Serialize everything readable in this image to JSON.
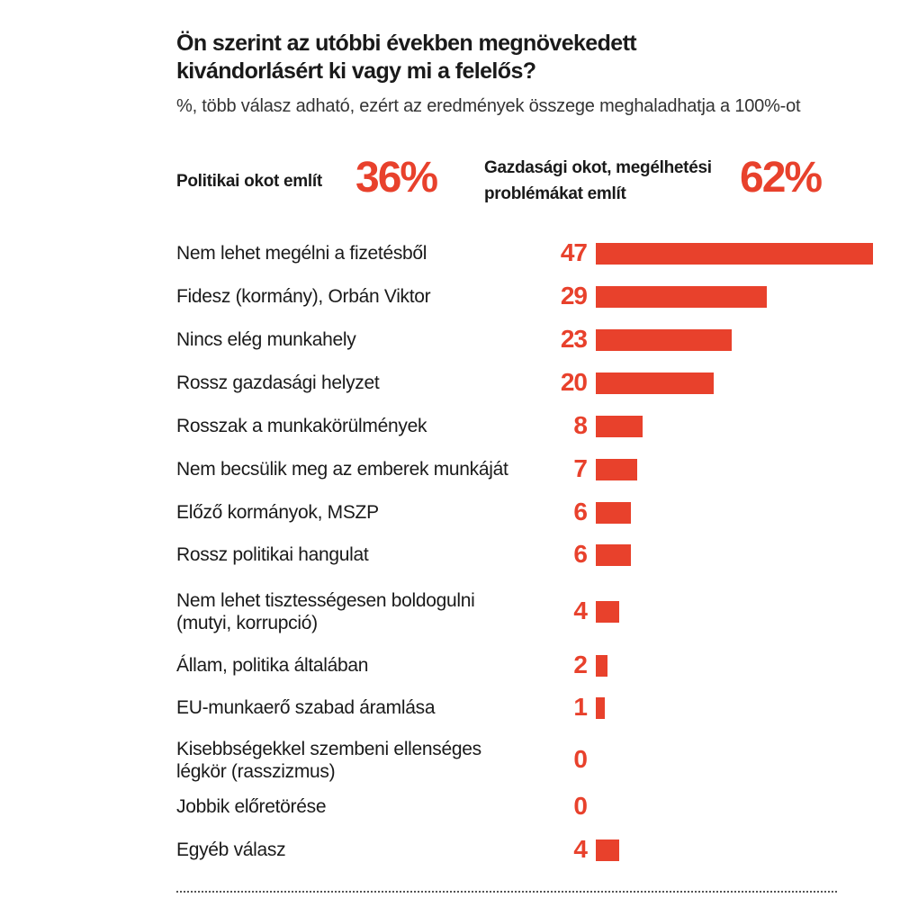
{
  "title": "Ön szerint az utóbbi években megnövekedett kivándorlásért ki vagy mi a felelős?",
  "subtitle": "%, több válasz adható, ezért az eredmények összege meghaladhatja a 100%-ot",
  "stats": [
    {
      "label": "Politikai okot említ",
      "value": "36%"
    },
    {
      "label": "Gazdasági okot, megélhetési problémákat említ",
      "value": "62%"
    }
  ],
  "colors": {
    "accent": "#e8412c",
    "text": "#1a1a1a"
  },
  "chart_data": {
    "type": "bar",
    "orientation": "horizontal",
    "categories": [
      "Nem lehet megélni a fizetésből",
      "Fidesz (kormány), Orbán Viktor",
      "Nincs elég munkahely",
      "Rossz gazdasági helyzet",
      "Rosszak a munkakörülmények",
      "Nem becsülik meg az emberek munkáját",
      "Előző kormányok, MSZP",
      "Rossz politikai hangulat",
      "Nem lehet tisztességesen boldogulni (mutyi, korrupció)",
      "Állam, politika általában",
      "EU-munkaerő szabad áramlása",
      "Kisebbségekkel szembeni ellenséges légkör (rasszizmus)",
      "Jobbik előretörése",
      "Egyéb válasz"
    ],
    "values": [
      47,
      29,
      23,
      20,
      8,
      7,
      6,
      6,
      4,
      2,
      1,
      0,
      0,
      4
    ]
  }
}
